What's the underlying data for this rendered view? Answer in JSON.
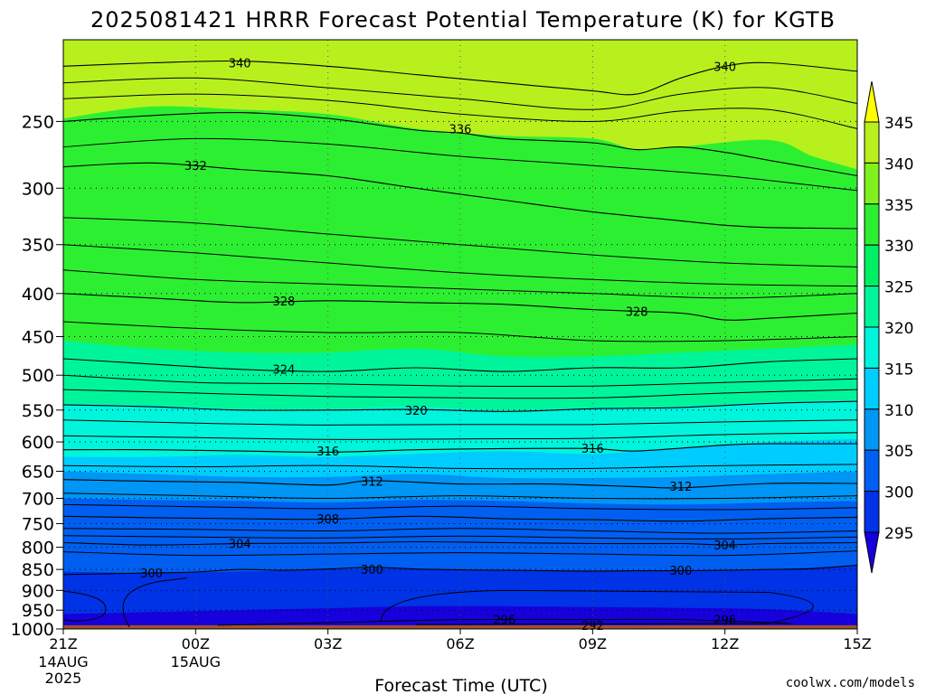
{
  "chart_data": {
    "type": "heatmap",
    "title": "2025081421 HRRR Forecast Potential Temperature (K) for KGTB",
    "xlabel": "Forecast Time (UTC)",
    "ylabel": "",
    "x_ticks": [
      {
        "label": "21Z",
        "sub1": "14AUG",
        "sub2": "2025",
        "hour": 0
      },
      {
        "label": "00Z",
        "sub1": "15AUG",
        "sub2": "",
        "hour": 3
      },
      {
        "label": "03Z",
        "sub1": "",
        "sub2": "",
        "hour": 6
      },
      {
        "label": "06Z",
        "sub1": "",
        "sub2": "",
        "hour": 9
      },
      {
        "label": "09Z",
        "sub1": "",
        "sub2": "",
        "hour": 12
      },
      {
        "label": "12Z",
        "sub1": "",
        "sub2": "",
        "hour": 15
      },
      {
        "label": "15Z",
        "sub1": "",
        "sub2": "",
        "hour": 18
      }
    ],
    "xlim": [
      0,
      18
    ],
    "y_ticks": [
      250,
      300,
      350,
      400,
      450,
      500,
      550,
      600,
      650,
      700,
      750,
      800,
      850,
      900,
      950,
      1000
    ],
    "ylim": [
      1000,
      200
    ],
    "y_scale": "log-pressure",
    "grid": true,
    "colorbar": {
      "levels": [
        295,
        300,
        305,
        310,
        315,
        320,
        325,
        330,
        335,
        340,
        345
      ],
      "labels": [
        "345",
        "340",
        "335",
        "330",
        "325",
        "320",
        "315",
        "310",
        "305",
        "300",
        "295"
      ],
      "colors": [
        "#1600dc",
        "#0032e6",
        "#005ff0",
        "#0096f5",
        "#00cdff",
        "#00f5dc",
        "#00f59a",
        "#00f064",
        "#2def32",
        "#80f01e",
        "#b8f01e",
        "#ffff00"
      ]
    },
    "isentropes": [
      {
        "value": 300,
        "points": [
          [
            0,
            862
          ],
          [
            1,
            860
          ],
          [
            2,
            858
          ],
          [
            3,
            856
          ],
          [
            4,
            850
          ],
          [
            5,
            852
          ],
          [
            6,
            849
          ],
          [
            7,
            845
          ],
          [
            8,
            849
          ],
          [
            9,
            851
          ],
          [
            10,
            852
          ],
          [
            11,
            853
          ],
          [
            12,
            854
          ],
          [
            13,
            853
          ],
          [
            14,
            853
          ],
          [
            15,
            852
          ],
          [
            16,
            850
          ],
          [
            17,
            848
          ],
          [
            18,
            840
          ]
        ]
      },
      {
        "value": 304,
        "points": [
          [
            0,
            790
          ],
          [
            2,
            795
          ],
          [
            4,
            792
          ],
          [
            6,
            791
          ],
          [
            8,
            788
          ],
          [
            10,
            790
          ],
          [
            12,
            792
          ],
          [
            14,
            792
          ],
          [
            15,
            795
          ],
          [
            16,
            792
          ],
          [
            18,
            790
          ]
        ]
      },
      {
        "value": 308,
        "points": [
          [
            0,
            735
          ],
          [
            2,
            738
          ],
          [
            4,
            740
          ],
          [
            6,
            741
          ],
          [
            8,
            735
          ],
          [
            10,
            740
          ],
          [
            12,
            742
          ],
          [
            14,
            745
          ],
          [
            16,
            740
          ],
          [
            18,
            737
          ]
        ]
      },
      {
        "value": 312,
        "points": [
          [
            0,
            665
          ],
          [
            2,
            668
          ],
          [
            4,
            670
          ],
          [
            6,
            675
          ],
          [
            7,
            667
          ],
          [
            9,
            673
          ],
          [
            11,
            673
          ],
          [
            13,
            678
          ],
          [
            14,
            680
          ],
          [
            16,
            672
          ],
          [
            18,
            672
          ]
        ]
      },
      {
        "value": 316,
        "points": [
          [
            0,
            613
          ],
          [
            2,
            613
          ],
          [
            4,
            615
          ],
          [
            6,
            617
          ],
          [
            8,
            613
          ],
          [
            10,
            611
          ],
          [
            12,
            611
          ],
          [
            13,
            615
          ],
          [
            15,
            605
          ],
          [
            16,
            603
          ],
          [
            18,
            603
          ]
        ]
      },
      {
        "value": 320,
        "points": [
          [
            0,
            542
          ],
          [
            2,
            545
          ],
          [
            4,
            550
          ],
          [
            6,
            550
          ],
          [
            8,
            549
          ],
          [
            10,
            552
          ],
          [
            12,
            548
          ],
          [
            14,
            546
          ],
          [
            16,
            540
          ],
          [
            18,
            537
          ]
        ]
      },
      {
        "value": 324,
        "points": [
          [
            0,
            478
          ],
          [
            2,
            485
          ],
          [
            4,
            492
          ],
          [
            6,
            495
          ],
          [
            8,
            490
          ],
          [
            10,
            495
          ],
          [
            12,
            490
          ],
          [
            14,
            490
          ],
          [
            16,
            482
          ],
          [
            18,
            478
          ]
        ]
      },
      {
        "value": 328,
        "points": [
          [
            0,
            400
          ],
          [
            2,
            405
          ],
          [
            4,
            410
          ],
          [
            6,
            408
          ],
          [
            8,
            410
          ],
          [
            10,
            412
          ],
          [
            12,
            418
          ],
          [
            14,
            422
          ],
          [
            15,
            430
          ],
          [
            16,
            428
          ],
          [
            18,
            422
          ]
        ]
      },
      {
        "value": 332,
        "points": [
          [
            0,
            283
          ],
          [
            2,
            280
          ],
          [
            4,
            285
          ],
          [
            6,
            290
          ],
          [
            8,
            300
          ],
          [
            10,
            310
          ],
          [
            12,
            320
          ],
          [
            14,
            328
          ],
          [
            15,
            332
          ],
          [
            16,
            334
          ],
          [
            18,
            335
          ]
        ]
      },
      {
        "value": 336,
        "points": [
          [
            0,
            250
          ],
          [
            2,
            246
          ],
          [
            4,
            244
          ],
          [
            6,
            248
          ],
          [
            8,
            256
          ],
          [
            9,
            258
          ],
          [
            10,
            262
          ],
          [
            12,
            265
          ],
          [
            13,
            270
          ],
          [
            14,
            268
          ],
          [
            15,
            272
          ],
          [
            16,
            278
          ],
          [
            18,
            290
          ]
        ]
      },
      {
        "value": 340,
        "points": [
          [
            0,
            215
          ],
          [
            2,
            213
          ],
          [
            4,
            212
          ],
          [
            6,
            215
          ],
          [
            8,
            220
          ],
          [
            10,
            225
          ],
          [
            12,
            230
          ],
          [
            13,
            232
          ],
          [
            14,
            222
          ],
          [
            15,
            215
          ],
          [
            16,
            213
          ],
          [
            18,
            218
          ]
        ]
      }
    ],
    "fill_boundaries": [
      {
        "band": "335-340",
        "points": [
          [
            0,
            248
          ],
          [
            2,
            240
          ],
          [
            4,
            242
          ],
          [
            6,
            245
          ],
          [
            8,
            255
          ],
          [
            10,
            260
          ],
          [
            12,
            262
          ],
          [
            13,
            270
          ],
          [
            14,
            268
          ],
          [
            16,
            263
          ],
          [
            17,
            275
          ],
          [
            18,
            285
          ]
        ]
      },
      {
        "band": "325-330",
        "points": [
          [
            0,
            455
          ],
          [
            2,
            465
          ],
          [
            4,
            470
          ],
          [
            6,
            470
          ],
          [
            8,
            465
          ],
          [
            10,
            475
          ],
          [
            12,
            475
          ],
          [
            14,
            470
          ],
          [
            16,
            465
          ],
          [
            18,
            460
          ]
        ]
      },
      {
        "band": "320-325",
        "points": [
          [
            0,
            540
          ],
          [
            2,
            543
          ],
          [
            4,
            548
          ],
          [
            6,
            548
          ],
          [
            8,
            545
          ],
          [
            10,
            550
          ],
          [
            12,
            546
          ],
          [
            14,
            544
          ],
          [
            16,
            538
          ],
          [
            18,
            535
          ]
        ]
      },
      {
        "band": "315-320",
        "points": [
          [
            0,
            625
          ],
          [
            2,
            625
          ],
          [
            4,
            622
          ],
          [
            6,
            625
          ],
          [
            8,
            620
          ],
          [
            10,
            615
          ],
          [
            12,
            620
          ],
          [
            14,
            610
          ],
          [
            16,
            600
          ],
          [
            18,
            595
          ]
        ]
      },
      {
        "band": "310-315",
        "points": [
          [
            0,
            650
          ],
          [
            2,
            655
          ],
          [
            4,
            660
          ],
          [
            6,
            660
          ],
          [
            8,
            655
          ],
          [
            10,
            662
          ],
          [
            12,
            662
          ],
          [
            14,
            660
          ],
          [
            16,
            655
          ],
          [
            18,
            650
          ]
        ]
      },
      {
        "band": "305-310",
        "points": [
          [
            0,
            700
          ],
          [
            2,
            703
          ],
          [
            4,
            705
          ],
          [
            6,
            708
          ],
          [
            8,
            703
          ],
          [
            10,
            705
          ],
          [
            12,
            710
          ],
          [
            14,
            712
          ],
          [
            16,
            708
          ],
          [
            18,
            705
          ]
        ]
      },
      {
        "band": "300-305",
        "points": [
          [
            0,
            855
          ],
          [
            2,
            858
          ],
          [
            4,
            855
          ],
          [
            6,
            850
          ],
          [
            8,
            848
          ],
          [
            10,
            852
          ],
          [
            12,
            852
          ],
          [
            14,
            852
          ],
          [
            16,
            850
          ],
          [
            18,
            840
          ]
        ]
      }
    ],
    "labels_on_contours": [
      {
        "value": "340",
        "hour": 4,
        "p": 213
      },
      {
        "value": "340",
        "hour": 15,
        "p": 215
      },
      {
        "value": "336",
        "hour": 9,
        "p": 255
      },
      {
        "value": "332",
        "hour": 3,
        "p": 282
      },
      {
        "value": "328",
        "hour": 5,
        "p": 408
      },
      {
        "value": "328",
        "hour": 13,
        "p": 420
      },
      {
        "value": "324",
        "hour": 5,
        "p": 492
      },
      {
        "value": "320",
        "hour": 8,
        "p": 550
      },
      {
        "value": "316",
        "hour": 6,
        "p": 615
      },
      {
        "value": "316",
        "hour": 12,
        "p": 610
      },
      {
        "value": "312",
        "hour": 7,
        "p": 668
      },
      {
        "value": "312",
        "hour": 14,
        "p": 677
      },
      {
        "value": "308",
        "hour": 6,
        "p": 740
      },
      {
        "value": "304",
        "hour": 4,
        "p": 792
      },
      {
        "value": "304",
        "hour": 15,
        "p": 795
      },
      {
        "value": "300",
        "hour": 2,
        "p": 858
      },
      {
        "value": "300",
        "hour": 7,
        "p": 850
      },
      {
        "value": "300",
        "hour": 14,
        "p": 852
      },
      {
        "value": "296",
        "hour": 10,
        "p": 975
      },
      {
        "value": "296",
        "hour": 15,
        "p": 975
      },
      {
        "value": "292",
        "hour": 12,
        "p": 990
      }
    ]
  },
  "footer": {
    "credit": "coolwx.com/models"
  },
  "colors": {
    "ground": "#a0522d",
    "credit": "#c00000"
  }
}
